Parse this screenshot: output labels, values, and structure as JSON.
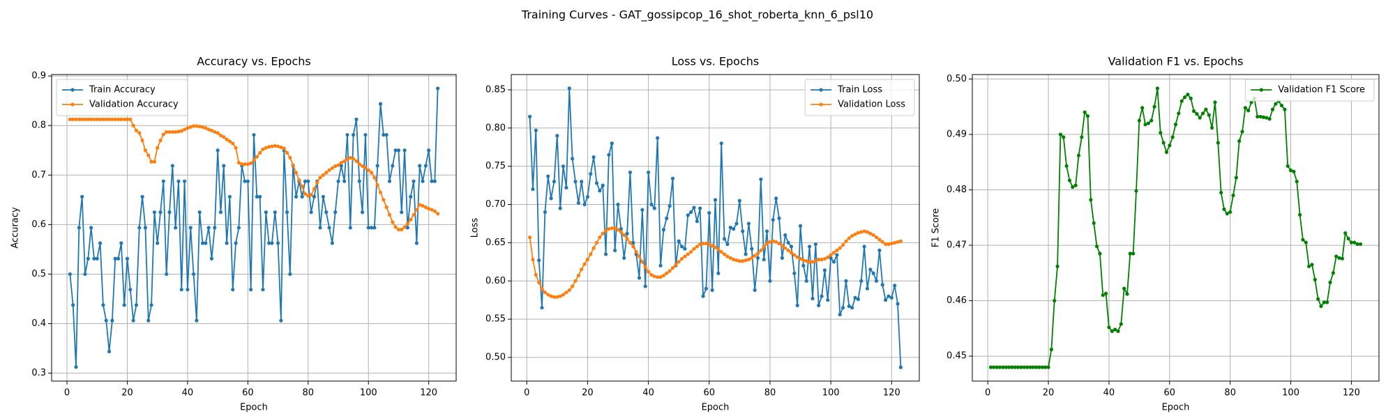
{
  "title": "Training Curves - GAT_gossipcop_16_shot_roberta_knn_6_psl10",
  "chart_data": [
    {
      "type": "line",
      "title": "Accuracy vs. Epochs",
      "xlabel": "Epoch",
      "ylabel": "Accuracy",
      "x": [
        1,
        2,
        3,
        4,
        5,
        6,
        7,
        8,
        9,
        10,
        11,
        12,
        13,
        14,
        15,
        16,
        17,
        18,
        19,
        20,
        21,
        22,
        23,
        24,
        25,
        26,
        27,
        28,
        29,
        30,
        31,
        32,
        33,
        34,
        35,
        36,
        37,
        38,
        39,
        40,
        41,
        42,
        43,
        44,
        45,
        46,
        47,
        48,
        49,
        50,
        51,
        52,
        53,
        54,
        55,
        56,
        57,
        58,
        59,
        60,
        61,
        62,
        63,
        64,
        65,
        66,
        67,
        68,
        69,
        70,
        71,
        72,
        73,
        74,
        75,
        76,
        77,
        78,
        79,
        80,
        81,
        82,
        83,
        84,
        85,
        86,
        87,
        88,
        89,
        90,
        91,
        92,
        93,
        94,
        95,
        96,
        97,
        98,
        99,
        100,
        101,
        102,
        103,
        104,
        105,
        106,
        107,
        108,
        109,
        110,
        111,
        112,
        113,
        114,
        115,
        116,
        117,
        118,
        119,
        120,
        121,
        122,
        123
      ],
      "series": [
        {
          "name": "Train Accuracy",
          "color": "#1f77b4",
          "values": [
            0.5,
            0.4375,
            0.3125,
            0.59375,
            0.65625,
            0.5,
            0.53125,
            0.59375,
            0.53125,
            0.53125,
            0.5625,
            0.4375,
            0.40625,
            0.34375,
            0.40625,
            0.53125,
            0.53125,
            0.5625,
            0.4375,
            0.53125,
            0.46875,
            0.40625,
            0.4375,
            0.59375,
            0.65625,
            0.59375,
            0.40625,
            0.4375,
            0.625,
            0.5625,
            0.625,
            0.6875,
            0.5,
            0.625,
            0.71875,
            0.59375,
            0.6875,
            0.46875,
            0.6875,
            0.46875,
            0.59375,
            0.5,
            0.40625,
            0.625,
            0.5625,
            0.5625,
            0.59375,
            0.53125,
            0.59375,
            0.75,
            0.625,
            0.71875,
            0.5625,
            0.65625,
            0.46875,
            0.5625,
            0.59375,
            0.71875,
            0.6875,
            0.6875,
            0.46875,
            0.78125,
            0.65625,
            0.65625,
            0.46875,
            0.625,
            0.5625,
            0.5625,
            0.625,
            0.5625,
            0.40625,
            0.75,
            0.625,
            0.5,
            0.71875,
            0.65625,
            0.6875,
            0.65625,
            0.6875,
            0.6875,
            0.625,
            0.65625,
            0.6875,
            0.59375,
            0.65625,
            0.625,
            0.59375,
            0.5625,
            0.625,
            0.6875,
            0.71875,
            0.6875,
            0.78125,
            0.59375,
            0.78125,
            0.8125,
            0.6875,
            0.625,
            0.78125,
            0.59375,
            0.59375,
            0.59375,
            0.71875,
            0.84375,
            0.78125,
            0.78125,
            0.6875,
            0.71875,
            0.75,
            0.75,
            0.625,
            0.75,
            0.59375,
            0.65625,
            0.6875,
            0.5625,
            0.71875,
            0.6875,
            0.71875,
            0.75,
            0.6875,
            0.6875,
            0.875
          ]
        },
        {
          "name": "Validation Accuracy",
          "color": "#ff7f0e",
          "values": [
            0.8125,
            0.8125,
            0.8125,
            0.8125,
            0.8125,
            0.8125,
            0.8125,
            0.8125,
            0.8125,
            0.8125,
            0.8125,
            0.8125,
            0.8125,
            0.8125,
            0.8125,
            0.8125,
            0.8125,
            0.8125,
            0.8125,
            0.8125,
            0.8125,
            0.8,
            0.79,
            0.785,
            0.77,
            0.75,
            0.74,
            0.727,
            0.727,
            0.755,
            0.77,
            0.782,
            0.787,
            0.787,
            0.787,
            0.787,
            0.788,
            0.789,
            0.792,
            0.795,
            0.797,
            0.799,
            0.799,
            0.798,
            0.797,
            0.795,
            0.792,
            0.79,
            0.787,
            0.785,
            0.78,
            0.777,
            0.772,
            0.768,
            0.764,
            0.755,
            0.725,
            0.722,
            0.722,
            0.722,
            0.724,
            0.73,
            0.737,
            0.745,
            0.752,
            0.755,
            0.757,
            0.758,
            0.759,
            0.758,
            0.756,
            0.754,
            0.745,
            0.735,
            0.72,
            0.705,
            0.69,
            0.677,
            0.662,
            0.658,
            0.66,
            0.672,
            0.685,
            0.695,
            0.7,
            0.705,
            0.71,
            0.714,
            0.718,
            0.72,
            0.725,
            0.728,
            0.732,
            0.735,
            0.733,
            0.728,
            0.722,
            0.718,
            0.715,
            0.71,
            0.705,
            0.695,
            0.68,
            0.665,
            0.65,
            0.635,
            0.62,
            0.605,
            0.595,
            0.59,
            0.59,
            0.595,
            0.602,
            0.61,
            0.62,
            0.63,
            0.64,
            0.638,
            0.635,
            0.632,
            0.63,
            0.627,
            0.622
          ]
        }
      ],
      "xlim": [
        -5.1,
        129.1
      ],
      "xticks": [
        0,
        20,
        40,
        60,
        80,
        100,
        120
      ],
      "ylim": [
        0.284,
        0.903
      ],
      "yticks": [
        0.3,
        0.4,
        0.5,
        0.6,
        0.7,
        0.8,
        0.9
      ],
      "grid": true,
      "legend": "upper left"
    },
    {
      "type": "line",
      "title": "Loss vs. Epochs",
      "xlabel": "Epoch",
      "ylabel": "Loss",
      "x": [
        1,
        2,
        3,
        4,
        5,
        6,
        7,
        8,
        9,
        10,
        11,
        12,
        13,
        14,
        15,
        16,
        17,
        18,
        19,
        20,
        21,
        22,
        23,
        24,
        25,
        26,
        27,
        28,
        29,
        30,
        31,
        32,
        33,
        34,
        35,
        36,
        37,
        38,
        39,
        40,
        41,
        42,
        43,
        44,
        45,
        46,
        47,
        48,
        49,
        50,
        51,
        52,
        53,
        54,
        55,
        56,
        57,
        58,
        59,
        60,
        61,
        62,
        63,
        64,
        65,
        66,
        67,
        68,
        69,
        70,
        71,
        72,
        73,
        74,
        75,
        76,
        77,
        78,
        79,
        80,
        81,
        82,
        83,
        84,
        85,
        86,
        87,
        88,
        89,
        90,
        91,
        92,
        93,
        94,
        95,
        96,
        97,
        98,
        99,
        100,
        101,
        102,
        103,
        104,
        105,
        106,
        107,
        108,
        109,
        110,
        111,
        112,
        113,
        114,
        115,
        116,
        117,
        118,
        119,
        120,
        121,
        122,
        123
      ],
      "series": [
        {
          "name": "Train Loss",
          "color": "#1f77b4",
          "values": [
            0.815,
            0.72,
            0.797,
            0.627,
            0.565,
            0.69,
            0.737,
            0.708,
            0.73,
            0.79,
            0.695,
            0.75,
            0.722,
            0.852,
            0.76,
            0.73,
            0.702,
            0.73,
            0.7,
            0.71,
            0.74,
            0.762,
            0.728,
            0.718,
            0.725,
            0.635,
            0.765,
            0.78,
            0.64,
            0.7,
            0.668,
            0.63,
            0.662,
            0.742,
            0.65,
            0.635,
            0.604,
            0.693,
            0.593,
            0.742,
            0.7,
            0.695,
            0.787,
            0.62,
            0.667,
            0.682,
            0.698,
            0.734,
            0.62,
            0.652,
            0.645,
            0.642,
            0.686,
            0.69,
            0.696,
            0.678,
            0.695,
            0.58,
            0.59,
            0.689,
            0.588,
            0.706,
            0.61,
            0.78,
            0.655,
            0.648,
            0.67,
            0.668,
            0.675,
            0.705,
            0.665,
            0.635,
            0.675,
            0.642,
            0.588,
            0.63,
            0.733,
            0.628,
            0.665,
            0.6,
            0.68,
            0.708,
            0.682,
            0.63,
            0.66,
            0.65,
            0.645,
            0.61,
            0.568,
            0.672,
            0.62,
            0.6,
            0.645,
            0.577,
            0.648,
            0.568,
            0.58,
            0.614,
            0.575,
            0.63,
            0.625,
            0.634,
            0.556,
            0.565,
            0.6,
            0.567,
            0.565,
            0.578,
            0.576,
            0.6,
            0.645,
            0.59,
            0.615,
            0.61,
            0.6,
            0.64,
            0.595,
            0.575,
            0.58,
            0.578,
            0.594,
            0.57,
            0.487
          ]
        },
        {
          "name": "Validation Loss",
          "color": "#ff7f0e",
          "values": [
            0.657,
            0.628,
            0.608,
            0.598,
            0.59,
            0.585,
            0.582,
            0.58,
            0.579,
            0.579,
            0.58,
            0.582,
            0.585,
            0.588,
            0.593,
            0.6,
            0.607,
            0.615,
            0.622,
            0.628,
            0.635,
            0.643,
            0.65,
            0.657,
            0.662,
            0.666,
            0.668,
            0.669,
            0.669,
            0.667,
            0.664,
            0.66,
            0.655,
            0.65,
            0.645,
            0.638,
            0.632,
            0.625,
            0.618,
            0.612,
            0.608,
            0.606,
            0.605,
            0.605,
            0.607,
            0.61,
            0.613,
            0.617,
            0.621,
            0.625,
            0.629,
            0.632,
            0.635,
            0.638,
            0.642,
            0.645,
            0.648,
            0.649,
            0.649,
            0.648,
            0.646,
            0.644,
            0.641,
            0.638,
            0.635,
            0.632,
            0.63,
            0.628,
            0.627,
            0.626,
            0.626,
            0.627,
            0.628,
            0.63,
            0.633,
            0.636,
            0.64,
            0.645,
            0.649,
            0.651,
            0.652,
            0.651,
            0.649,
            0.646,
            0.643,
            0.64,
            0.637,
            0.634,
            0.631,
            0.629,
            0.627,
            0.626,
            0.625,
            0.625,
            0.626,
            0.628,
            0.628,
            0.629,
            0.631,
            0.634,
            0.637,
            0.64,
            0.643,
            0.647,
            0.652,
            0.656,
            0.659,
            0.661,
            0.663,
            0.664,
            0.665,
            0.664,
            0.662,
            0.66,
            0.657,
            0.654,
            0.651,
            0.648,
            0.648,
            0.649,
            0.65,
            0.651,
            0.652
          ]
        }
      ],
      "xlim": [
        -5.1,
        129.1
      ],
      "xticks": [
        0,
        20,
        40,
        60,
        80,
        100,
        120
      ],
      "ylim": [
        0.469,
        0.87
      ],
      "yticks": [
        {
          "value": 0.5,
          "label": "0.50"
        },
        0.55,
        {
          "value": 0.6,
          "label": "0.60"
        },
        0.65,
        {
          "value": 0.7,
          "label": "0.70"
        },
        0.75,
        {
          "value": 0.8,
          "label": "0.80"
        },
        0.85
      ],
      "grid": true,
      "legend": "upper right"
    },
    {
      "type": "line",
      "title": "Validation F1 vs. Epochs",
      "xlabel": "Epoch",
      "ylabel": "F1 Score",
      "x": [
        1,
        2,
        3,
        4,
        5,
        6,
        7,
        8,
        9,
        10,
        11,
        12,
        13,
        14,
        15,
        16,
        17,
        18,
        19,
        20,
        21,
        22,
        23,
        24,
        25,
        26,
        27,
        28,
        29,
        30,
        31,
        32,
        33,
        34,
        35,
        36,
        37,
        38,
        39,
        40,
        41,
        42,
        43,
        44,
        45,
        46,
        47,
        48,
        49,
        50,
        51,
        52,
        53,
        54,
        55,
        56,
        57,
        58,
        59,
        60,
        61,
        62,
        63,
        64,
        65,
        66,
        67,
        68,
        69,
        70,
        71,
        72,
        73,
        74,
        75,
        76,
        77,
        78,
        79,
        80,
        81,
        82,
        83,
        84,
        85,
        86,
        87,
        88,
        89,
        90,
        91,
        92,
        93,
        94,
        95,
        96,
        97,
        98,
        99,
        100,
        101,
        102,
        103,
        104,
        105,
        106,
        107,
        108,
        109,
        110,
        111,
        112,
        113,
        114,
        115,
        116,
        117,
        118,
        119,
        120,
        121,
        122,
        123
      ],
      "series": [
        {
          "name": "Validation F1 Score",
          "color": "#008000",
          "values": [
            0.448,
            0.448,
            0.448,
            0.448,
            0.448,
            0.448,
            0.448,
            0.448,
            0.448,
            0.448,
            0.448,
            0.448,
            0.448,
            0.448,
            0.448,
            0.448,
            0.448,
            0.448,
            0.448,
            0.448,
            0.4512,
            0.46,
            0.4662,
            0.49,
            0.4895,
            0.4843,
            0.4817,
            0.4805,
            0.4808,
            0.4862,
            0.4895,
            0.494,
            0.4933,
            0.4782,
            0.474,
            0.4698,
            0.4685,
            0.461,
            0.4613,
            0.4552,
            0.4545,
            0.4548,
            0.4545,
            0.4558,
            0.4622,
            0.4612,
            0.4685,
            0.4685,
            0.4798,
            0.4925,
            0.4948,
            0.4918,
            0.492,
            0.4925,
            0.495,
            0.4983,
            0.4903,
            0.4885,
            0.4868,
            0.488,
            0.4895,
            0.4918,
            0.4938,
            0.496,
            0.4967,
            0.4972,
            0.4965,
            0.4942,
            0.4937,
            0.493,
            0.4938,
            0.4945,
            0.4935,
            0.4912,
            0.4958,
            0.4885,
            0.4795,
            0.4765,
            0.4757,
            0.476,
            0.479,
            0.4822,
            0.4888,
            0.4905,
            0.4948,
            0.4943,
            0.4958,
            0.4965,
            0.4932,
            0.4932,
            0.4931,
            0.493,
            0.4928,
            0.4945,
            0.4955,
            0.496,
            0.4952,
            0.4945,
            0.4843,
            0.4835,
            0.4833,
            0.4815,
            0.4755,
            0.471,
            0.4705,
            0.4662,
            0.4665,
            0.4638,
            0.4603,
            0.459,
            0.4597,
            0.4597,
            0.4633,
            0.465,
            0.468,
            0.4677,
            0.4676,
            0.4722,
            0.4712,
            0.4705,
            0.4705,
            0.4702,
            0.4702
          ]
        }
      ],
      "xlim": [
        -5.1,
        129.1
      ],
      "xticks": [
        0,
        20,
        40,
        60,
        80,
        100,
        120
      ],
      "ylim": [
        0.4455,
        0.5008
      ],
      "yticks": [
        0.45,
        0.46,
        0.47,
        0.48,
        0.49,
        {
          "value": 0.5,
          "label": "0.50"
        }
      ],
      "grid": true,
      "legend": "upper right"
    }
  ]
}
